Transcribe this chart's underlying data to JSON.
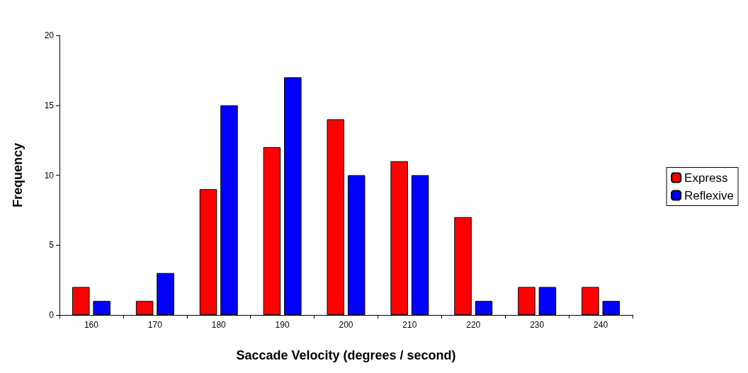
{
  "chart_data": {
    "type": "bar",
    "xlabel": "Saccade Velocity (degrees / second)",
    "ylabel": "Frequency",
    "categories": [
      "160",
      "170",
      "180",
      "190",
      "200",
      "210",
      "220",
      "230",
      "240"
    ],
    "series": [
      {
        "name": "Express",
        "color": "#ff0000",
        "values": [
          2,
          1,
          9,
          12,
          14,
          11,
          7,
          2,
          2
        ]
      },
      {
        "name": "Reflexive",
        "color": "#0000ff",
        "values": [
          1,
          3,
          15,
          17,
          10,
          10,
          1,
          2,
          1
        ]
      }
    ],
    "ylim": [
      0,
      20
    ],
    "yticks": [
      0,
      5,
      10,
      15,
      20
    ],
    "grid": false,
    "legend": "right"
  }
}
